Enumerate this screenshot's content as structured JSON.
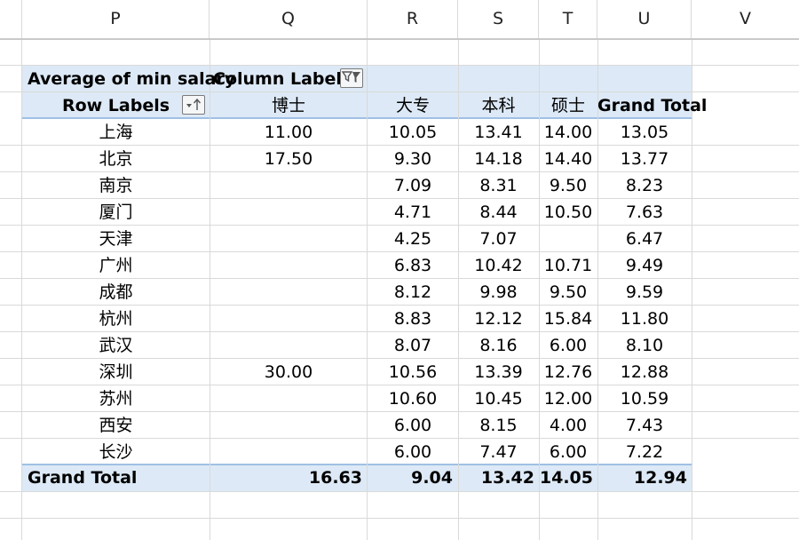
{
  "columns": [
    "P",
    "Q",
    "R",
    "S",
    "T",
    "U",
    "V"
  ],
  "pivot": {
    "title": "Average of min salary",
    "column_labels": "Column Labels",
    "row_labels": "Row Labels",
    "headers": [
      "博士",
      "大专",
      "本科",
      "硕士",
      "Grand Total"
    ],
    "rows": [
      {
        "label": "上海",
        "values": [
          "11.00",
          "10.05",
          "13.41",
          "14.00",
          "13.05"
        ]
      },
      {
        "label": "北京",
        "values": [
          "17.50",
          "9.30",
          "14.18",
          "14.40",
          "13.77"
        ]
      },
      {
        "label": "南京",
        "values": [
          "",
          "7.09",
          "8.31",
          "9.50",
          "8.23"
        ]
      },
      {
        "label": "厦门",
        "values": [
          "",
          "4.71",
          "8.44",
          "10.50",
          "7.63"
        ]
      },
      {
        "label": "天津",
        "values": [
          "",
          "4.25",
          "7.07",
          "",
          "6.47"
        ]
      },
      {
        "label": "广州",
        "values": [
          "",
          "6.83",
          "10.42",
          "10.71",
          "9.49"
        ]
      },
      {
        "label": "成都",
        "values": [
          "",
          "8.12",
          "9.98",
          "9.50",
          "9.59"
        ]
      },
      {
        "label": "杭州",
        "values": [
          "",
          "8.83",
          "12.12",
          "15.84",
          "11.80"
        ]
      },
      {
        "label": "武汉",
        "values": [
          "",
          "8.07",
          "8.16",
          "6.00",
          "8.10"
        ]
      },
      {
        "label": "深圳",
        "values": [
          "30.00",
          "10.56",
          "13.39",
          "12.76",
          "12.88"
        ]
      },
      {
        "label": "苏州",
        "values": [
          "",
          "10.60",
          "10.45",
          "12.00",
          "10.59"
        ]
      },
      {
        "label": "西安",
        "values": [
          "",
          "6.00",
          "8.15",
          "4.00",
          "7.43"
        ]
      },
      {
        "label": "长沙",
        "values": [
          "",
          "6.00",
          "7.47",
          "6.00",
          "7.22"
        ]
      }
    ],
    "grand_total_label": "Grand Total",
    "grand_total_values": [
      "16.63",
      "9.04",
      "13.42",
      "14.05",
      "12.94"
    ]
  },
  "icons": {
    "column_filter": "filter-funnel-icon",
    "row_sort": "dropdown-sort-ascending-icon"
  },
  "colors": {
    "pivot_band": "#dde9f6",
    "pivot_line": "#9fc0e4",
    "gridline": "#d9d9d9"
  }
}
